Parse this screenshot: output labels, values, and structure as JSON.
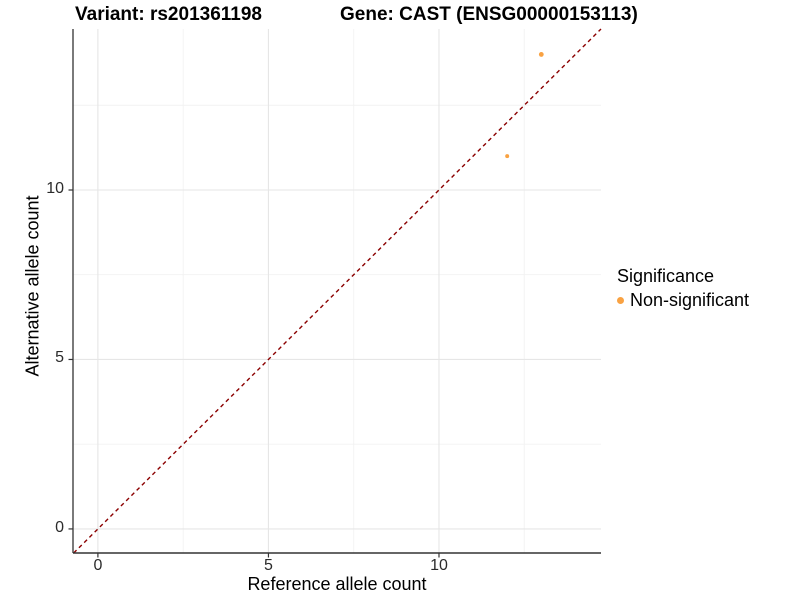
{
  "header": {
    "title_left": "Variant: rs201361198",
    "title_right": "Gene: CAST (ENSG00000153113)"
  },
  "chart_data": {
    "type": "scatter",
    "title_left": "Variant: rs201361198",
    "title_right": "Gene: CAST (ENSG00000153113)",
    "xlabel": "Reference allele count",
    "ylabel": "Alternative allele count",
    "xlim": [
      -0.73,
      14.75
    ],
    "ylim": [
      -0.71,
      14.75
    ],
    "x_major_ticks": [
      0,
      5,
      10
    ],
    "y_major_ticks": [
      0,
      5,
      10
    ],
    "x_minor_gridlines": [
      2.5,
      7.5,
      12.5
    ],
    "y_minor_gridlines": [
      2.5,
      7.5,
      12.5
    ],
    "grid": "major and minor, light gray on white",
    "points": [
      {
        "x": 12,
        "y": 11,
        "r": 2.0,
        "significance": "Non-significant"
      },
      {
        "x": 13,
        "y": 14,
        "r": 2.4,
        "significance": "Non-significant"
      }
    ],
    "identity_line": {
      "slope": 1,
      "intercept": 0,
      "style": "dashed",
      "color": "#8B0000"
    },
    "colors": {
      "non_significant": "#F9A242",
      "gridline_major": "#E6E6E6",
      "gridline_minor": "#F2F2F2",
      "axis": "#333333",
      "tick": "#333333"
    },
    "legend": {
      "title": "Significance",
      "position": "right",
      "items": [
        {
          "label": "Non-significant",
          "color": "#F9A242"
        }
      ]
    }
  }
}
